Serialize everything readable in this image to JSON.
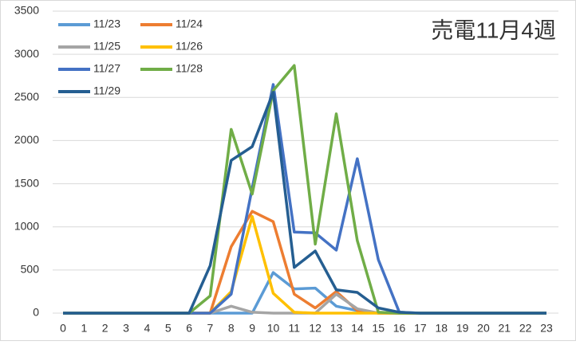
{
  "chart_data": {
    "type": "line",
    "title": "売電11月4週",
    "categories": [
      "0",
      "1",
      "2",
      "3",
      "4",
      "5",
      "6",
      "7",
      "8",
      "9",
      "10",
      "11",
      "12",
      "13",
      "14",
      "15",
      "16",
      "17",
      "18",
      "19",
      "20",
      "21",
      "22",
      "23"
    ],
    "series": [
      {
        "name": "11/23",
        "color": "#5b9bd5",
        "values": [
          0,
          0,
          0,
          0,
          0,
          0,
          0,
          0,
          0,
          0,
          470,
          280,
          290,
          80,
          30,
          0,
          0,
          0,
          0,
          0,
          0,
          0,
          0,
          0
        ]
      },
      {
        "name": "11/24",
        "color": "#ed7d31",
        "values": [
          0,
          0,
          0,
          0,
          0,
          0,
          0,
          0,
          770,
          1180,
          1060,
          220,
          60,
          250,
          30,
          0,
          0,
          0,
          0,
          0,
          0,
          0,
          0,
          0
        ]
      },
      {
        "name": "11/25",
        "color": "#a5a5a5",
        "values": [
          0,
          0,
          0,
          0,
          0,
          0,
          0,
          0,
          80,
          10,
          0,
          0,
          0,
          220,
          50,
          0,
          0,
          0,
          0,
          0,
          0,
          0,
          0,
          0
        ]
      },
      {
        "name": "11/26",
        "color": "#ffc000",
        "values": [
          0,
          0,
          0,
          0,
          0,
          0,
          0,
          0,
          250,
          1120,
          230,
          10,
          0,
          0,
          0,
          0,
          0,
          0,
          0,
          0,
          0,
          0,
          0,
          0
        ]
      },
      {
        "name": "11/27",
        "color": "#4472c4",
        "values": [
          0,
          0,
          0,
          0,
          0,
          0,
          0,
          0,
          220,
          1450,
          2650,
          940,
          930,
          730,
          1790,
          620,
          10,
          0,
          0,
          0,
          0,
          0,
          0,
          0
        ]
      },
      {
        "name": "11/28",
        "color": "#70ad47",
        "values": [
          0,
          0,
          0,
          0,
          0,
          0,
          0,
          200,
          2130,
          1380,
          2580,
          2870,
          800,
          2310,
          840,
          10,
          0,
          0,
          0,
          0,
          0,
          0,
          0,
          0
        ]
      },
      {
        "name": "11/29",
        "color": "#255e91",
        "values": [
          0,
          0,
          0,
          0,
          0,
          0,
          0,
          550,
          1770,
          1930,
          2560,
          530,
          720,
          270,
          240,
          60,
          10,
          0,
          0,
          0,
          0,
          0,
          0,
          0
        ]
      }
    ],
    "ylim": [
      0,
      3500
    ],
    "yticks": [
      0,
      500,
      1000,
      1500,
      2000,
      2500,
      3000,
      3500
    ],
    "grid": true,
    "legend": "top-left"
  }
}
